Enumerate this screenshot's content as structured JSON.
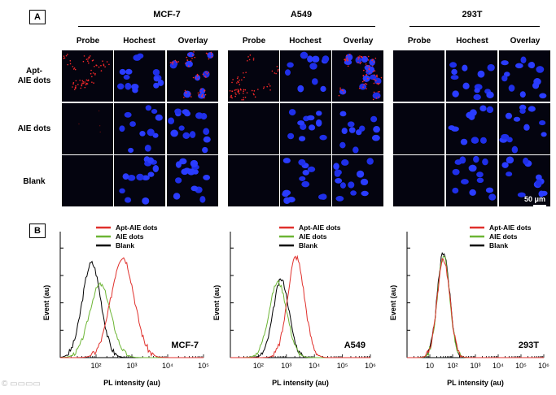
{
  "panel_a": {
    "tag": "A",
    "groups": [
      {
        "title": "MCF-7",
        "cols": [
          "Probe",
          "Hochest",
          "Overlay"
        ]
      },
      {
        "title": "A549",
        "cols": [
          "Probe",
          "Hochest",
          "Overlay"
        ]
      },
      {
        "title": "293T",
        "cols": [
          "Probe",
          "Hochest",
          "Overlay"
        ]
      }
    ],
    "rows": [
      "Apt-\nAIE dots",
      "AIE dots",
      "Blank"
    ],
    "scale_bar": "50 μm"
  },
  "panel_b": {
    "tag": "B",
    "ylabel": "Event (au)",
    "xlabel": "PL intensity (au)",
    "legend": [
      "Apt-AIE dots",
      "AIE dots",
      "Blank"
    ],
    "colors": {
      "apt": "#e0302c",
      "aie": "#6cb534",
      "blank": "#000000"
    }
  },
  "chart_data": [
    {
      "type": "line",
      "title": "MCF-7",
      "xlabel": "PL intensity (au)",
      "ylabel": "Event (au)",
      "x_scale": "log",
      "xlim": [
        10,
        100000
      ],
      "x_ticks": [
        "10²",
        "10³",
        "10⁴",
        "10⁵"
      ],
      "series": [
        {
          "name": "Apt-AIE dots",
          "peak_x": 550,
          "width": 0.32,
          "peak_y": 0.8
        },
        {
          "name": "AIE dots",
          "peak_x": 130,
          "width": 0.3,
          "peak_y": 0.58
        },
        {
          "name": "Blank",
          "peak_x": 75,
          "width": 0.26,
          "peak_y": 0.75
        }
      ]
    },
    {
      "type": "line",
      "title": "A549",
      "xlabel": "PL intensity (au)",
      "ylabel": "Event (au)",
      "x_scale": "log",
      "xlim": [
        10,
        1000000
      ],
      "x_ticks": [
        "10²",
        "10³",
        "10⁴",
        "10⁵",
        "10⁶"
      ],
      "series": [
        {
          "name": "Apt-AIE dots",
          "peak_x": 2200,
          "width": 0.3,
          "peak_y": 0.8
        },
        {
          "name": "AIE dots",
          "peak_x": 500,
          "width": 0.32,
          "peak_y": 0.6
        },
        {
          "name": "Blank",
          "peak_x": 650,
          "width": 0.28,
          "peak_y": 0.62
        }
      ]
    },
    {
      "type": "line",
      "title": "293T",
      "xlabel": "PL intensity (au)",
      "ylabel": "Event (au)",
      "x_scale": "log",
      "xlim": [
        1,
        1000000
      ],
      "x_ticks": [
        "10",
        "10²",
        "10³",
        "10⁴",
        "10⁵",
        "10⁶"
      ],
      "series": [
        {
          "name": "Apt-AIE dots",
          "peak_x": 40,
          "width": 0.28,
          "peak_y": 0.78
        },
        {
          "name": "AIE dots",
          "peak_x": 40,
          "width": 0.27,
          "peak_y": 0.8
        },
        {
          "name": "Blank",
          "peak_x": 40,
          "width": 0.27,
          "peak_y": 0.84
        }
      ]
    }
  ]
}
